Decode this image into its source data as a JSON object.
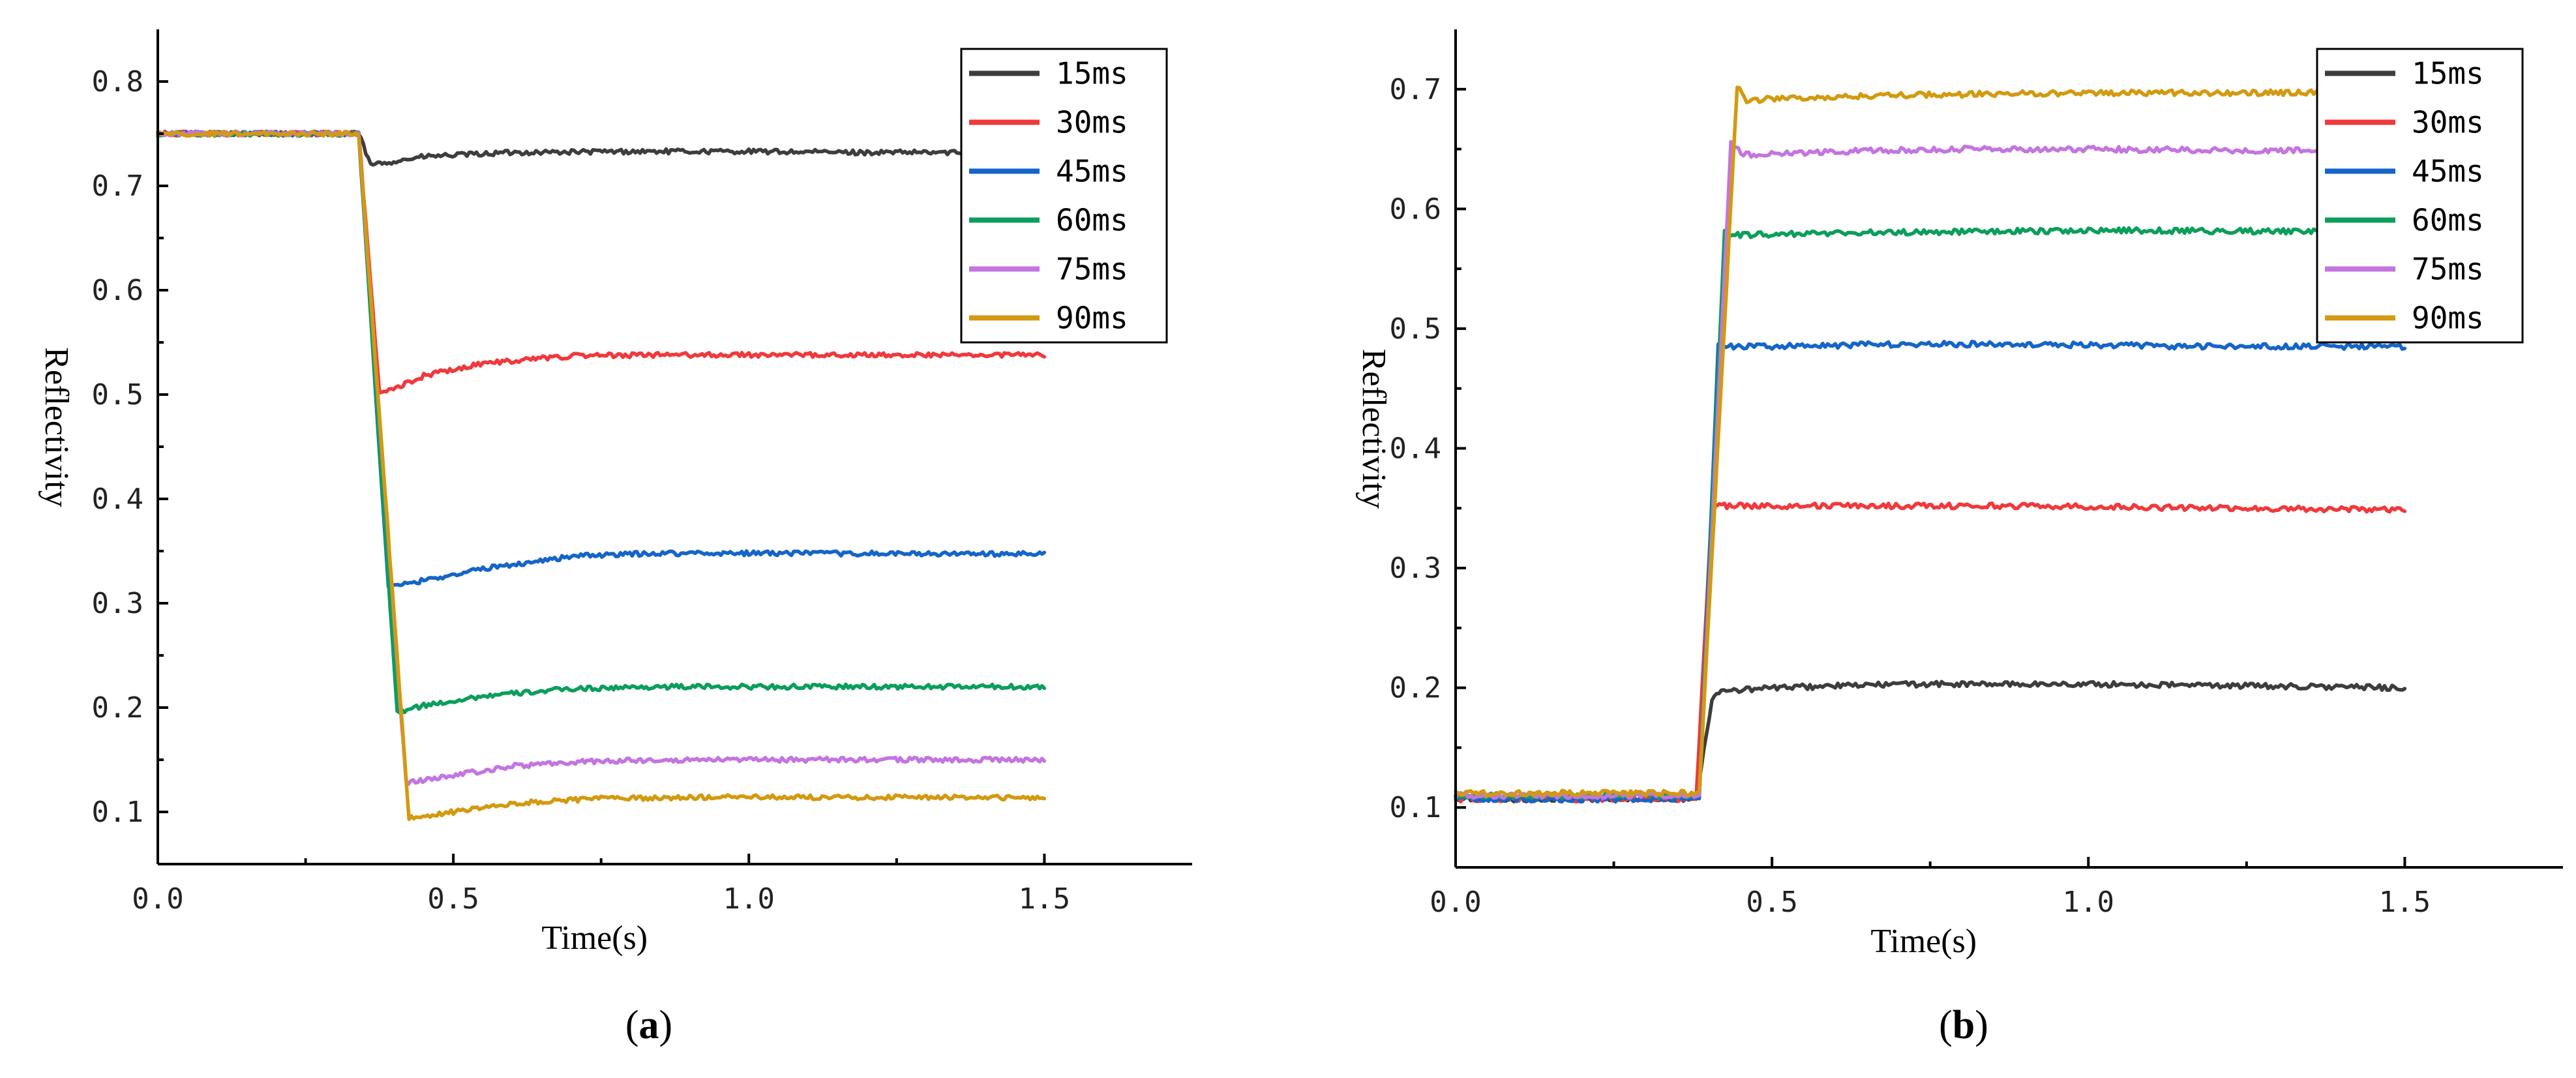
{
  "chart_data": [
    {
      "type": "line",
      "panel_label": "a",
      "caption_open": "(",
      "caption_close": ")",
      "xlabel": "Time(s)",
      "ylabel": "Reflectivity",
      "xlim": [
        0.0,
        1.75
      ],
      "ylim": [
        0.05,
        0.85
      ],
      "xticks": [
        0.0,
        0.5,
        1.0,
        1.5
      ],
      "xtick_labels": [
        "0.0",
        "0.5",
        "1.0",
        "1.5"
      ],
      "yticks": [
        0.1,
        0.2,
        0.3,
        0.4,
        0.5,
        0.6,
        0.7,
        0.8
      ],
      "ytick_labels": [
        "0.1",
        "0.2",
        "0.3",
        "0.4",
        "0.5",
        "0.6",
        "0.7",
        "0.8"
      ],
      "legend_position": "top-right",
      "series": [
        {
          "name": "15ms",
          "color": "#3d3d3d",
          "x": [
            0.0,
            0.34,
            0.36,
            0.45,
            0.6,
            0.8,
            1.0,
            1.2,
            1.5
          ],
          "y": [
            0.75,
            0.75,
            0.72,
            0.728,
            0.732,
            0.733,
            0.733,
            0.732,
            0.732
          ]
        },
        {
          "name": "30ms",
          "color": "#f0393c",
          "x": [
            0.0,
            0.34,
            0.375,
            0.45,
            0.55,
            0.7,
            0.85,
            1.0,
            1.5
          ],
          "y": [
            0.75,
            0.75,
            0.5,
            0.518,
            0.53,
            0.537,
            0.538,
            0.538,
            0.538
          ]
        },
        {
          "name": "45ms",
          "color": "#1565c9",
          "x": [
            0.0,
            0.34,
            0.39,
            0.45,
            0.55,
            0.7,
            0.85,
            1.0,
            1.5
          ],
          "y": [
            0.75,
            0.75,
            0.315,
            0.322,
            0.333,
            0.345,
            0.348,
            0.348,
            0.347
          ]
        },
        {
          "name": "60ms",
          "color": "#0c9e5c",
          "x": [
            0.0,
            0.34,
            0.405,
            0.45,
            0.55,
            0.7,
            0.85,
            1.0,
            1.5
          ],
          "y": [
            0.75,
            0.75,
            0.195,
            0.202,
            0.211,
            0.218,
            0.22,
            0.22,
            0.22
          ]
        },
        {
          "name": "75ms",
          "color": "#c375e0",
          "x": [
            0.0,
            0.34,
            0.42,
            0.5,
            0.6,
            0.75,
            0.9,
            1.1,
            1.5
          ],
          "y": [
            0.75,
            0.75,
            0.128,
            0.135,
            0.144,
            0.149,
            0.15,
            0.15,
            0.15
          ]
        },
        {
          "name": "90ms",
          "color": "#d39a10",
          "x": [
            0.0,
            0.34,
            0.425,
            0.5,
            0.6,
            0.75,
            0.9,
            1.1,
            1.5
          ],
          "y": [
            0.75,
            0.75,
            0.094,
            0.1,
            0.108,
            0.113,
            0.114,
            0.114,
            0.114
          ]
        }
      ]
    },
    {
      "type": "line",
      "panel_label": "b",
      "caption_open": "(",
      "caption_close": ")",
      "xlabel": "Time(s)",
      "ylabel": "Reflectivity",
      "xlim": [
        0.0,
        1.75
      ],
      "ylim": [
        0.05,
        0.75
      ],
      "xticks": [
        0.0,
        0.5,
        1.0,
        1.5
      ],
      "xtick_labels": [
        "0.0",
        "0.5",
        "1.0",
        "1.5"
      ],
      "yticks": [
        0.1,
        0.2,
        0.3,
        0.4,
        0.5,
        0.6,
        0.7
      ],
      "ytick_labels": [
        "0.1",
        "0.2",
        "0.3",
        "0.4",
        "0.5",
        "0.6",
        "0.7"
      ],
      "legend_position": "top-right",
      "series": [
        {
          "name": "15ms",
          "color": "#3d3d3d",
          "x": [
            0.0,
            0.38,
            0.405,
            0.42,
            0.5,
            0.7,
            1.0,
            1.2,
            1.5
          ],
          "y": [
            0.107,
            0.107,
            0.19,
            0.197,
            0.2,
            0.203,
            0.203,
            0.202,
            0.2
          ]
        },
        {
          "name": "30ms",
          "color": "#f0393c",
          "x": [
            0.0,
            0.38,
            0.405,
            0.5,
            0.7,
            0.9,
            1.2,
            1.5
          ],
          "y": [
            0.107,
            0.107,
            0.352,
            0.352,
            0.352,
            0.352,
            0.35,
            0.349
          ]
        },
        {
          "name": "45ms",
          "color": "#1565c9",
          "x": [
            0.0,
            0.385,
            0.415,
            0.5,
            0.7,
            0.9,
            1.2,
            1.5
          ],
          "y": [
            0.107,
            0.107,
            0.485,
            0.485,
            0.487,
            0.487,
            0.485,
            0.485
          ]
        },
        {
          "name": "60ms",
          "color": "#0c9e5c",
          "x": [
            0.0,
            0.385,
            0.425,
            0.45,
            0.6,
            0.8,
            1.0,
            1.5
          ],
          "y": [
            0.11,
            0.11,
            0.58,
            0.578,
            0.58,
            0.581,
            0.582,
            0.581
          ]
        },
        {
          "name": "75ms",
          "color": "#c375e0",
          "x": [
            0.0,
            0.385,
            0.435,
            0.455,
            0.6,
            0.8,
            1.0,
            1.5
          ],
          "y": [
            0.11,
            0.11,
            0.655,
            0.645,
            0.648,
            0.65,
            0.65,
            0.648
          ]
        },
        {
          "name": "90ms",
          "color": "#d39a10",
          "x": [
            0.0,
            0.385,
            0.445,
            0.46,
            0.5,
            0.7,
            1.0,
            1.5
          ],
          "y": [
            0.112,
            0.112,
            0.702,
            0.69,
            0.692,
            0.695,
            0.697,
            0.697
          ]
        }
      ]
    }
  ]
}
